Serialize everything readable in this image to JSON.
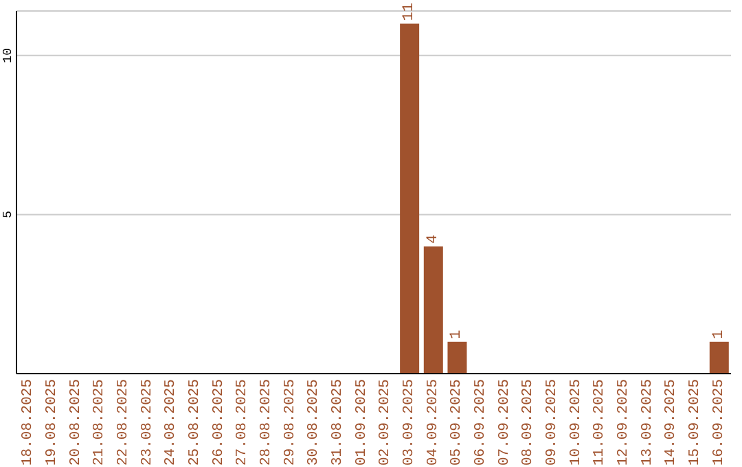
{
  "chart_data": {
    "type": "bar",
    "categories": [
      "18.08.2025",
      "19.08.2025",
      "20.08.2025",
      "21.08.2025",
      "22.08.2025",
      "23.08.2025",
      "24.08.2025",
      "25.08.2025",
      "26.08.2025",
      "27.08.2025",
      "28.08.2025",
      "29.08.2025",
      "30.08.2025",
      "31.08.2025",
      "01.09.2025",
      "02.09.2025",
      "03.09.2025",
      "04.09.2025",
      "05.09.2025",
      "06.09.2025",
      "07.09.2025",
      "08.09.2025",
      "09.09.2025",
      "10.09.2025",
      "11.09.2025",
      "12.09.2025",
      "13.09.2025",
      "14.09.2025",
      "15.09.2025",
      "16.09.2025"
    ],
    "values": [
      0,
      0,
      0,
      0,
      0,
      0,
      0,
      0,
      0,
      0,
      0,
      0,
      0,
      0,
      0,
      0,
      11,
      4,
      1,
      0,
      0,
      0,
      0,
      0,
      0,
      0,
      0,
      0,
      0,
      1
    ],
    "value_labels": [
      null,
      null,
      null,
      null,
      null,
      null,
      null,
      null,
      null,
      null,
      null,
      null,
      null,
      null,
      null,
      null,
      "11",
      "4",
      "1",
      null,
      null,
      null,
      null,
      null,
      null,
      null,
      null,
      null,
      null,
      "1"
    ],
    "color": "#a0522d",
    "ylim": [
      0,
      11.4
    ],
    "yticks": [
      5,
      10
    ],
    "grid": "y"
  }
}
